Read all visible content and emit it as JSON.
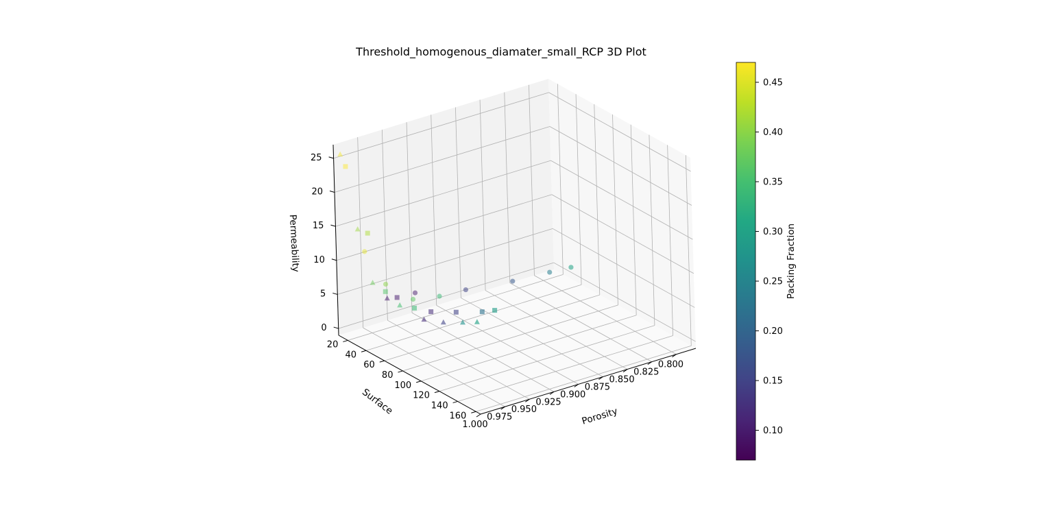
{
  "chart_data": {
    "type": "scatter",
    "title": "Threshold_homogenous_diamater_small_RCP 3D Plot",
    "xlabel": "Porosity",
    "ylabel": "Surface",
    "zlabel": "Permeability",
    "colorbar_label": "Packing Fraction",
    "colormap": "viridis",
    "xlim": [
      0.78,
      1.0
    ],
    "ylim": [
      10,
      165
    ],
    "zlim": [
      -1,
      27
    ],
    "clim": [
      0.07,
      0.47
    ],
    "x_ticks": [
      "1.000",
      "0.975",
      "0.950",
      "0.925",
      "0.900",
      "0.875",
      "0.850",
      "0.825",
      "0.800"
    ],
    "y_ticks": [
      "20",
      "40",
      "60",
      "80",
      "100",
      "120",
      "140",
      "160"
    ],
    "z_ticks": [
      "0",
      "5",
      "10",
      "15",
      "20",
      "25"
    ],
    "colorbar_ticks": [
      "0.10",
      "0.15",
      "0.20",
      "0.25",
      "0.30",
      "0.35",
      "0.40",
      "0.45"
    ],
    "grid": true,
    "series": [
      {
        "marker": "triangle",
        "points": [
          {
            "porosity": 0.995,
            "surface": 12,
            "permeability": 25.5,
            "packing": 0.465
          },
          {
            "porosity": 0.985,
            "surface": 18,
            "permeability": 14.5,
            "packing": 0.41
          },
          {
            "porosity": 0.975,
            "surface": 22,
            "permeability": 6.5,
            "packing": 0.38
          },
          {
            "porosity": 0.968,
            "surface": 30,
            "permeability": 4.5,
            "packing": 0.1
          },
          {
            "porosity": 0.96,
            "surface": 35,
            "permeability": 3.5,
            "packing": 0.35
          },
          {
            "porosity": 0.945,
            "surface": 45,
            "permeability": 1.5,
            "packing": 0.12
          },
          {
            "porosity": 0.93,
            "surface": 50,
            "permeability": 0.8,
            "packing": 0.15
          },
          {
            "porosity": 0.915,
            "surface": 55,
            "permeability": 0.5,
            "packing": 0.27
          },
          {
            "porosity": 0.905,
            "surface": 60,
            "permeability": 0.5,
            "packing": 0.3
          }
        ]
      },
      {
        "marker": "square",
        "points": [
          {
            "porosity": 0.99,
            "surface": 12,
            "permeability": 23.5,
            "packing": 0.47
          },
          {
            "porosity": 0.975,
            "surface": 18,
            "permeability": 13.5,
            "packing": 0.42
          },
          {
            "porosity": 0.965,
            "surface": 25,
            "permeability": 5.0,
            "packing": 0.36
          },
          {
            "porosity": 0.958,
            "surface": 30,
            "permeability": 4.2,
            "packing": 0.1
          },
          {
            "porosity": 0.948,
            "surface": 38,
            "permeability": 2.8,
            "packing": 0.34
          },
          {
            "porosity": 0.935,
            "surface": 42,
            "permeability": 2.0,
            "packing": 0.12
          },
          {
            "porosity": 0.915,
            "surface": 48,
            "permeability": 1.5,
            "packing": 0.15
          },
          {
            "porosity": 0.895,
            "surface": 55,
            "permeability": 1.2,
            "packing": 0.22
          },
          {
            "porosity": 0.885,
            "surface": 58,
            "permeability": 1.2,
            "packing": 0.29
          }
        ]
      },
      {
        "marker": "circle",
        "points": [
          {
            "porosity": 0.975,
            "surface": 14,
            "permeability": 10.5,
            "packing": 0.455
          },
          {
            "porosity": 0.96,
            "surface": 20,
            "permeability": 5.5,
            "packing": 0.4
          },
          {
            "porosity": 0.94,
            "surface": 28,
            "permeability": 3.0,
            "packing": 0.37
          },
          {
            "porosity": 0.935,
            "surface": 25,
            "permeability": 3.5,
            "packing": 0.1
          },
          {
            "porosity": 0.915,
            "surface": 30,
            "permeability": 2.5,
            "packing": 0.34
          },
          {
            "porosity": 0.89,
            "surface": 32,
            "permeability": 2.5,
            "packing": 0.15
          },
          {
            "porosity": 0.845,
            "surface": 35,
            "permeability": 2.0,
            "packing": 0.18
          },
          {
            "porosity": 0.81,
            "surface": 38,
            "permeability": 2.0,
            "packing": 0.24
          },
          {
            "porosity": 0.79,
            "surface": 40,
            "permeability": 2.0,
            "packing": 0.3
          }
        ]
      }
    ]
  }
}
